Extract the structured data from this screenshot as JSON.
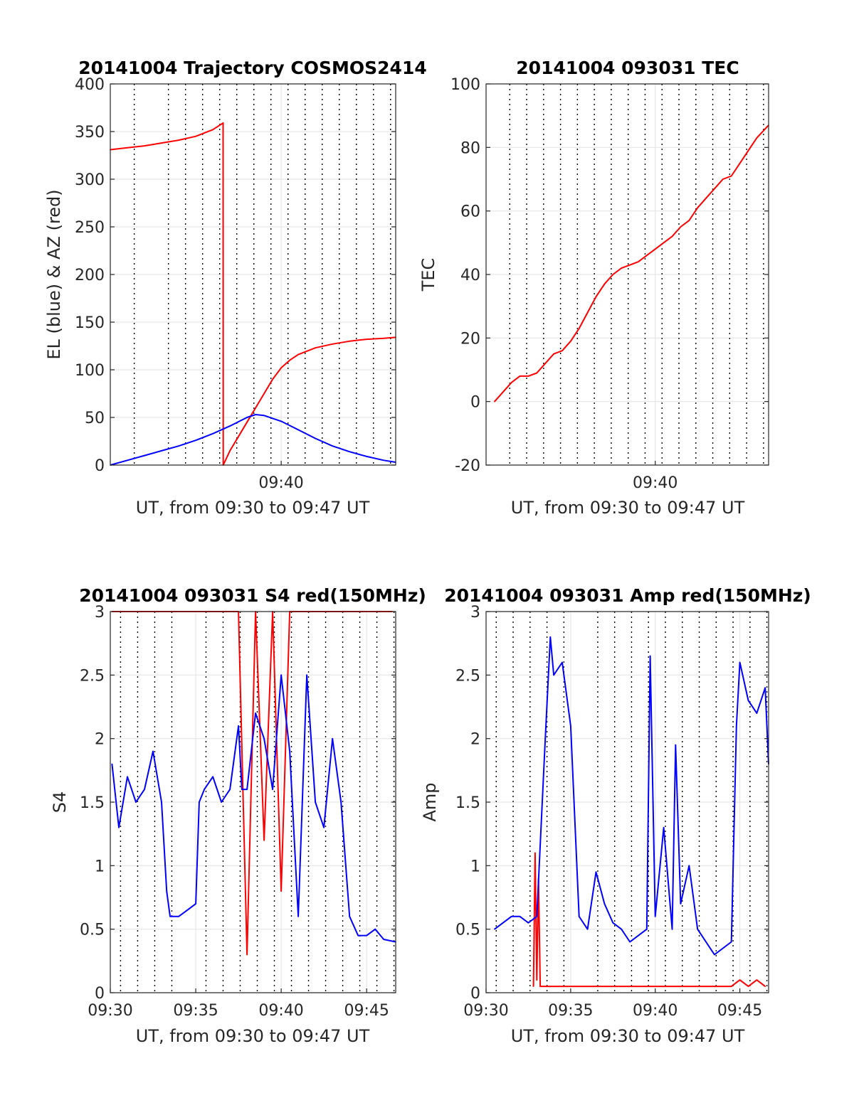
{
  "figure": {
    "background": "#ffffff"
  },
  "chart_data": [
    {
      "id": "trajectory",
      "type": "line",
      "title": "20141004 Trajectory COSMOS2414",
      "xlabel": "UT, from 09:30 to 09:47 UT",
      "ylabel": "EL (blue) & AZ (red)",
      "xlim": [
        0,
        16.7
      ],
      "ylim": [
        0,
        400
      ],
      "yticks": [
        0,
        50,
        100,
        150,
        200,
        250,
        300,
        350,
        400
      ],
      "xticks": [
        {
          "at": 10,
          "label": "09:40"
        }
      ],
      "dotted_minor_minutes": [
        1.4,
        3.4,
        4.4,
        5.4,
        6.4,
        7.4,
        8.4,
        9.4,
        10.4,
        11.4,
        12.4,
        13.4,
        14.4,
        15.4,
        16.4
      ],
      "grid": true,
      "series": [
        {
          "color": "#ff0000",
          "x": [
            0,
            1,
            2,
            3,
            4,
            5,
            6,
            6.6,
            6.61,
            7,
            7.5,
            8,
            8.5,
            9,
            9.5,
            10,
            10.5,
            11,
            12,
            13,
            14,
            15,
            16,
            16.7
          ],
          "y": [
            331,
            333,
            335,
            338,
            341,
            345,
            352,
            359,
            0,
            15,
            30,
            45,
            60,
            75,
            90,
            102,
            110,
            116,
            123,
            127,
            130,
            132,
            133,
            134
          ]
        },
        {
          "color": "#0000ff",
          "x": [
            0,
            1,
            2,
            3,
            4,
            5,
            6,
            7,
            8,
            8.5,
            9,
            10,
            11,
            12,
            13,
            14,
            15,
            16,
            16.7
          ],
          "y": [
            0,
            5,
            10,
            15,
            20,
            26,
            33,
            41,
            50,
            53,
            52,
            46,
            37,
            28,
            20,
            14,
            9,
            5,
            3
          ]
        }
      ]
    },
    {
      "id": "tec",
      "type": "line",
      "title": "20141004 093031 TEC",
      "xlabel": "UT, from 09:30 to 09:47 UT",
      "ylabel": "TEC",
      "xlim": [
        0,
        16.7
      ],
      "ylim": [
        -20,
        100
      ],
      "yticks": [
        -20,
        0,
        20,
        40,
        60,
        80,
        100
      ],
      "xticks": [
        {
          "at": 10,
          "label": "09:40"
        }
      ],
      "dotted_minor_minutes": [
        1.4,
        2.4,
        3.4,
        4.4,
        5.4,
        6.4,
        7.4,
        8.4,
        9.4,
        10.4,
        11.4,
        12.4,
        13.4,
        14.4,
        15.4,
        16.4
      ],
      "grid": true,
      "series": [
        {
          "color": "#ff0000",
          "x": [
            0.5,
            1,
            1.5,
            2,
            2.5,
            3,
            3.5,
            4,
            4.5,
            5,
            5.5,
            6,
            6.5,
            7,
            7.5,
            8,
            8.5,
            9,
            9.5,
            10,
            10.5,
            11,
            11.5,
            12,
            12.5,
            13,
            13.5,
            14,
            14.5,
            15,
            15.5,
            16,
            16.7
          ],
          "y": [
            0,
            3,
            6,
            8,
            8,
            9,
            12,
            15,
            16,
            19,
            23,
            28,
            33,
            37,
            40,
            42,
            43,
            44,
            46,
            48,
            50,
            52,
            55,
            57,
            61,
            64,
            67,
            70,
            71,
            75,
            79,
            83,
            87
          ]
        }
      ]
    },
    {
      "id": "s4",
      "type": "line",
      "title": "20141004 093031 S4 red(150MHz)",
      "xlabel": "UT, from 09:30 to 09:47 UT",
      "ylabel": "S4",
      "xlim": [
        0,
        16.7
      ],
      "ylim": [
        0,
        3
      ],
      "yticks": [
        0,
        0.5,
        1,
        1.5,
        2,
        2.5,
        3
      ],
      "yticklabels": [
        "0",
        "0.5",
        "1",
        "1.5",
        "2",
        "2.5",
        "3"
      ],
      "xticks": [
        {
          "at": 0,
          "label": "09:30"
        },
        {
          "at": 5,
          "label": "09:35"
        },
        {
          "at": 10,
          "label": "09:40"
        },
        {
          "at": 15,
          "label": "09:45"
        }
      ],
      "dotted_minor_minutes": [
        0.6,
        1.6,
        2.6,
        3.6,
        5.6,
        6.6,
        7.6,
        8.6,
        9.6,
        10.6,
        11.6,
        12.6,
        13.6,
        14.6,
        15.6,
        16.6
      ],
      "grid": true,
      "series": [
        {
          "color": "#ff0000",
          "x": [
            0.1,
            0.6,
            1.0,
            1.5,
            2.0,
            2.5,
            3.0,
            3.5,
            4.0,
            4.5,
            5.0,
            5.5,
            6.0,
            6.5,
            7.0,
            7.5,
            8.0,
            8.5,
            9.0,
            9.5,
            10.0,
            10.5,
            11.0,
            11.5,
            12.0,
            12.5,
            13.0,
            13.5,
            14.0,
            14.5,
            15.0,
            15.5,
            16.0,
            16.5
          ],
          "y": [
            3,
            3,
            3,
            3,
            3,
            3,
            3,
            3,
            3,
            3,
            3,
            3,
            3,
            3,
            3,
            3,
            0.3,
            3,
            1.2,
            3,
            0.8,
            3,
            3,
            3,
            3,
            3,
            3,
            3,
            3,
            3,
            3,
            3,
            3,
            3
          ]
        },
        {
          "color": "#0000ff",
          "x": [
            0.1,
            0.5,
            1.0,
            1.5,
            2.0,
            2.5,
            3.0,
            3.3,
            3.5,
            4.0,
            4.5,
            5.0,
            5.2,
            5.5,
            6.0,
            6.5,
            7.0,
            7.5,
            7.7,
            8.0,
            8.5,
            9.0,
            9.5,
            10.0,
            10.5,
            11.0,
            11.5,
            12.0,
            12.5,
            13.0,
            13.5,
            14.0,
            14.5,
            15.0,
            15.5,
            16.0,
            16.7
          ],
          "y": [
            1.8,
            1.3,
            1.7,
            1.5,
            1.6,
            1.9,
            1.5,
            0.8,
            0.6,
            0.6,
            0.65,
            0.7,
            1.5,
            1.6,
            1.7,
            1.5,
            1.6,
            2.1,
            1.6,
            1.6,
            2.2,
            2.0,
            1.6,
            2.5,
            1.9,
            0.6,
            2.5,
            1.5,
            1.3,
            2.0,
            1.5,
            0.6,
            0.45,
            0.45,
            0.5,
            0.42,
            0.4
          ]
        }
      ]
    },
    {
      "id": "amp",
      "type": "line",
      "title": "20141004 093031 Amp red(150MHz)",
      "xlabel": "UT, from 09:30 to 09:47 UT",
      "ylabel": "Amp",
      "xlim": [
        0,
        16.7
      ],
      "ylim": [
        0,
        3
      ],
      "yticks": [
        0,
        0.5,
        1,
        1.5,
        2,
        2.5,
        3
      ],
      "yticklabels": [
        "0",
        "0.5",
        "1",
        "1.5",
        "2",
        "2.5",
        "3"
      ],
      "xticks": [
        {
          "at": 0,
          "label": "09:30"
        },
        {
          "at": 5,
          "label": "09:35"
        },
        {
          "at": 10,
          "label": "09:40"
        },
        {
          "at": 15,
          "label": "09:45"
        }
      ],
      "dotted_minor_minutes": [
        0.6,
        1.6,
        2.6,
        3.6,
        4.6,
        6.6,
        7.6,
        8.6,
        9.6,
        10.6,
        11.6,
        12.6,
        13.6,
        14.6,
        15.6,
        16.6
      ],
      "grid": true,
      "series": [
        {
          "color": "#ff0000",
          "x": [
            2.8,
            2.9,
            3.0,
            3.1,
            3.2,
            14.5,
            15.0,
            15.5,
            16.0,
            16.5
          ],
          "y": [
            0.05,
            1.1,
            0.1,
            0.9,
            0.05,
            0.05,
            0.1,
            0.05,
            0.1,
            0.05
          ]
        },
        {
          "color": "#0000ff",
          "x": [
            0.5,
            1.0,
            1.5,
            2.0,
            2.5,
            3.0,
            3.5,
            3.8,
            4.0,
            4.5,
            5.0,
            5.5,
            6.0,
            6.5,
            7.0,
            7.5,
            8.0,
            8.5,
            9.0,
            9.5,
            9.7,
            10.0,
            10.5,
            11.0,
            11.2,
            11.5,
            12.0,
            12.5,
            13.0,
            13.5,
            14.0,
            14.5,
            14.8,
            15.0,
            15.5,
            16.0,
            16.5,
            16.7
          ],
          "y": [
            0.5,
            0.55,
            0.6,
            0.6,
            0.55,
            0.6,
            2.0,
            2.8,
            2.5,
            2.6,
            2.1,
            0.6,
            0.5,
            0.95,
            0.7,
            0.55,
            0.5,
            0.4,
            0.45,
            0.5,
            2.65,
            0.6,
            1.3,
            0.5,
            1.95,
            0.7,
            1.0,
            0.5,
            0.4,
            0.3,
            0.35,
            0.4,
            2.1,
            2.6,
            2.3,
            2.2,
            2.4,
            1.8
          ]
        }
      ]
    }
  ]
}
